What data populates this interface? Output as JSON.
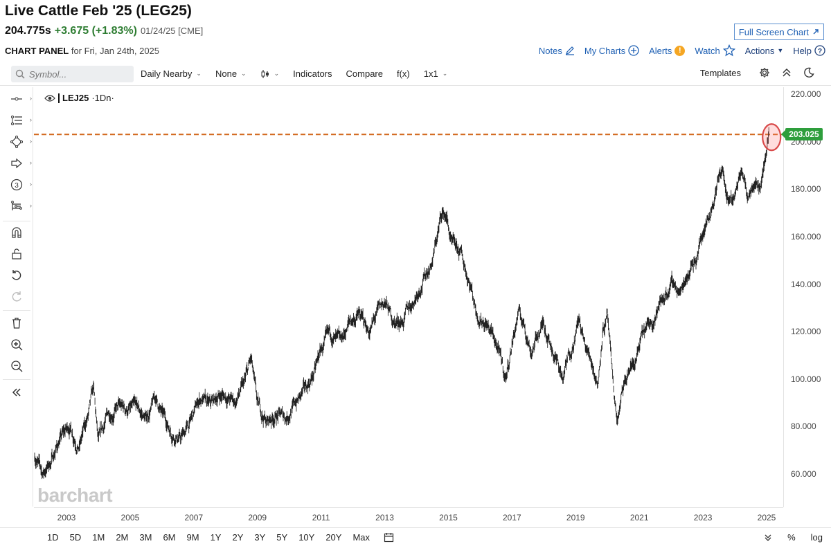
{
  "header": {
    "title": "Live Cattle Feb '25 (LEG25)",
    "last": "204.775s",
    "change": "+3.675 (+1.83%)",
    "date": "01/24/25 [CME]",
    "fullscreen_label": "Full Screen Chart"
  },
  "panel": {
    "label": "CHART PANEL",
    "for_text": "for Fri, Jan 24th, 2025",
    "links": {
      "notes": "Notes",
      "my_charts": "My Charts",
      "alerts": "Alerts",
      "watch": "Watch",
      "actions": "Actions",
      "help": "Help"
    }
  },
  "toolbar": {
    "symbol_placeholder": "Symbol...",
    "period": "Daily Nearby",
    "overlay": "None",
    "indicators": "Indicators",
    "compare": "Compare",
    "fx": "f(x)",
    "layout": "1x1",
    "templates": "Templates"
  },
  "legend": {
    "symbol": "LEJ25",
    "interval": "·1Dn·"
  },
  "watermark": "barchart",
  "icons": {
    "search": "search-icon",
    "edit": "pencil-icon",
    "add": "plus-circle-icon",
    "alert": "exclamation-icon",
    "watch": "star-icon",
    "help": "question-circle-icon",
    "settings": "gear-icon",
    "collapse": "double-chevron-up-icon",
    "theme": "moon-icon"
  },
  "colors": {
    "up": "#2e7d32",
    "link": "#1d5fb3",
    "price_tag": "#2e9e3c",
    "dashed_line": "#d2691e",
    "highlight_circle": "#d94a4a"
  },
  "chart_data": {
    "type": "ohlc",
    "symbol": "LEJ25",
    "interval": "1Dn",
    "xlim": [
      2002.0,
      2025.2
    ],
    "ylim": [
      45,
      222
    ],
    "x_ticks": [
      "2003",
      "2005",
      "2007",
      "2009",
      "2011",
      "2013",
      "2015",
      "2017",
      "2019",
      "2021",
      "2023",
      "2025"
    ],
    "y_ticks": [
      "220.000",
      "200.000",
      "180.000",
      "160.000",
      "140.000",
      "120.000",
      "100.000",
      "80.000",
      "60.000"
    ],
    "reference_line": {
      "value": 203.025,
      "label": "203.025",
      "style": "dashed"
    },
    "series": [
      {
        "points": [
          [
            2002.0,
            68
          ],
          [
            2002.25,
            60
          ],
          [
            2002.5,
            65
          ],
          [
            2002.8,
            75
          ],
          [
            2003.1,
            80
          ],
          [
            2003.4,
            72
          ],
          [
            2003.7,
            85
          ],
          [
            2003.85,
            95
          ],
          [
            2004.0,
            72
          ],
          [
            2004.3,
            85
          ],
          [
            2004.6,
            88
          ],
          [
            2004.9,
            87
          ],
          [
            2005.2,
            87
          ],
          [
            2005.5,
            83
          ],
          [
            2005.8,
            92
          ],
          [
            2006.0,
            85
          ],
          [
            2006.3,
            78
          ],
          [
            2006.6,
            75
          ],
          [
            2006.9,
            82
          ],
          [
            2007.2,
            92
          ],
          [
            2007.5,
            88
          ],
          [
            2007.8,
            93
          ],
          [
            2008.0,
            93
          ],
          [
            2008.3,
            90
          ],
          [
            2008.6,
            98
          ],
          [
            2008.8,
            108
          ],
          [
            2009.0,
            88
          ],
          [
            2009.3,
            82
          ],
          [
            2009.6,
            85
          ],
          [
            2009.9,
            84
          ],
          [
            2010.2,
            90
          ],
          [
            2010.5,
            95
          ],
          [
            2010.8,
            103
          ],
          [
            2011.0,
            112
          ],
          [
            2011.3,
            118
          ],
          [
            2011.6,
            114
          ],
          [
            2011.9,
            124
          ],
          [
            2012.2,
            127
          ],
          [
            2012.5,
            120
          ],
          [
            2012.8,
            128
          ],
          [
            2013.0,
            132
          ],
          [
            2013.3,
            124
          ],
          [
            2013.6,
            125
          ],
          [
            2013.9,
            133
          ],
          [
            2014.2,
            142
          ],
          [
            2014.5,
            150
          ],
          [
            2014.8,
            170
          ],
          [
            2014.95,
            168
          ],
          [
            2015.1,
            156
          ],
          [
            2015.4,
            152
          ],
          [
            2015.7,
            140
          ],
          [
            2015.9,
            128
          ],
          [
            2016.2,
            124
          ],
          [
            2016.5,
            115
          ],
          [
            2016.8,
            100
          ],
          [
            2017.0,
            115
          ],
          [
            2017.2,
            128
          ],
          [
            2017.4,
            122
          ],
          [
            2017.6,
            112
          ],
          [
            2017.8,
            118
          ],
          [
            2018.0,
            124
          ],
          [
            2018.3,
            112
          ],
          [
            2018.6,
            100
          ],
          [
            2018.9,
            115
          ],
          [
            2019.1,
            125
          ],
          [
            2019.3,
            113
          ],
          [
            2019.5,
            108
          ],
          [
            2019.7,
            98
          ],
          [
            2019.85,
            122
          ],
          [
            2020.0,
            126
          ],
          [
            2020.15,
            100
          ],
          [
            2020.3,
            82
          ],
          [
            2020.5,
            95
          ],
          [
            2020.7,
            104
          ],
          [
            2020.9,
            108
          ],
          [
            2021.1,
            118
          ],
          [
            2021.3,
            122
          ],
          [
            2021.6,
            130
          ],
          [
            2021.9,
            138
          ],
          [
            2022.1,
            140
          ],
          [
            2022.3,
            136
          ],
          [
            2022.5,
            145
          ],
          [
            2022.8,
            152
          ],
          [
            2023.0,
            162
          ],
          [
            2023.2,
            170
          ],
          [
            2023.4,
            180
          ],
          [
            2023.6,
            189
          ],
          [
            2023.8,
            172
          ],
          [
            2024.0,
            177
          ],
          [
            2024.2,
            188
          ],
          [
            2024.4,
            178
          ],
          [
            2024.6,
            186
          ],
          [
            2024.8,
            182
          ],
          [
            2024.95,
            192
          ],
          [
            2025.07,
            204.775
          ]
        ]
      }
    ]
  }
}
